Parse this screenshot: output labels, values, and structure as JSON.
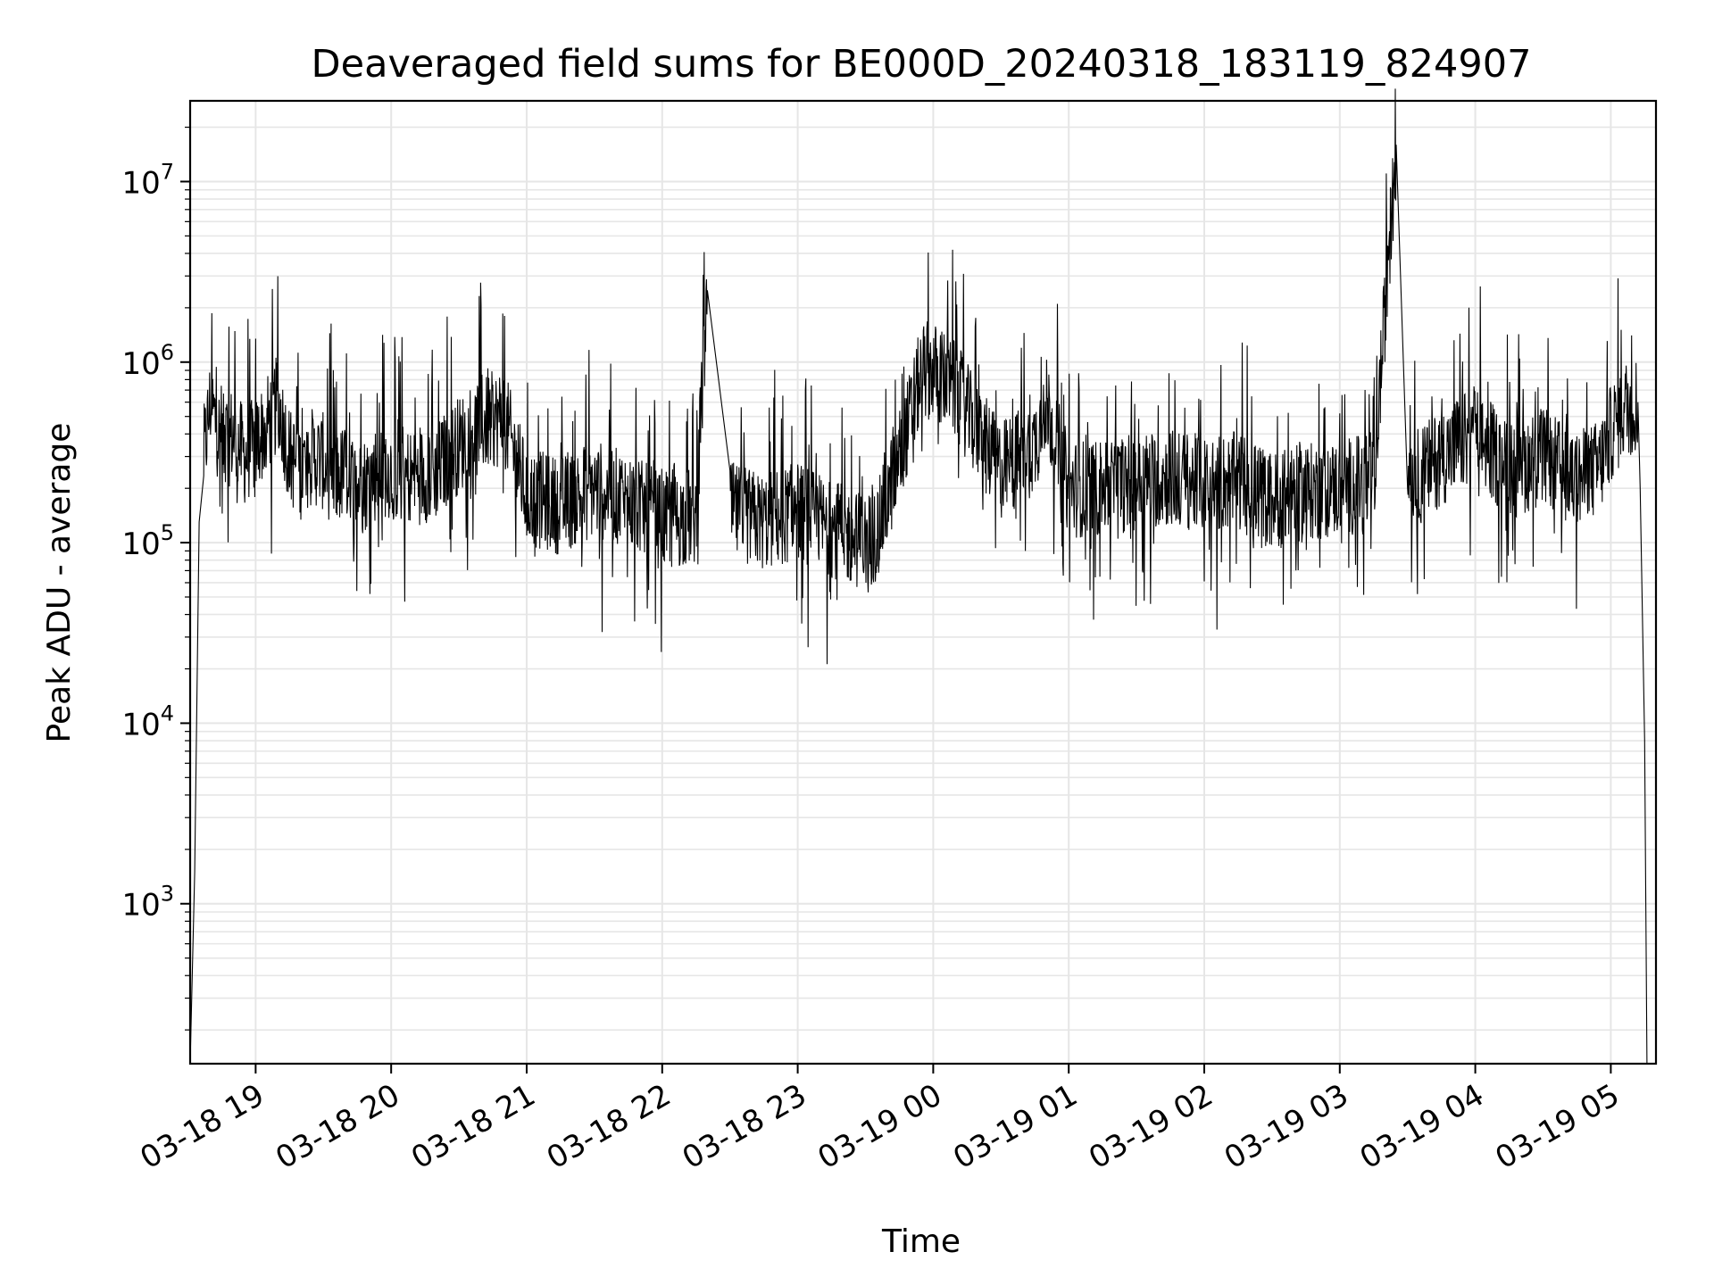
{
  "chart_data": {
    "type": "line",
    "title": "Deaveraged field sums for BE000D_20240318_183119_824907",
    "xlabel": "Time",
    "ylabel": "Peak ADU - average",
    "yscale": "log",
    "ylim": [
      130,
      28000000
    ],
    "xlim": [
      "03-18 18:31",
      "03-19 05:20"
    ],
    "grid": "on (major and minor)",
    "legend": "none",
    "x_ticks": [
      "03-18 19",
      "03-18 20",
      "03-18 21",
      "03-18 22",
      "03-18 23",
      "03-19 00",
      "03-19 01",
      "03-19 02",
      "03-19 03",
      "03-19 04",
      "03-19 05"
    ],
    "y_ticks": [
      {
        "value": 1000,
        "base": "10",
        "exp": "3"
      },
      {
        "value": 10000,
        "base": "10",
        "exp": "4"
      },
      {
        "value": 100000,
        "base": "10",
        "exp": "5"
      },
      {
        "value": 1000000,
        "base": "10",
        "exp": "6"
      },
      {
        "value": 10000000,
        "base": "10",
        "exp": "7"
      }
    ],
    "series": [
      {
        "color": "#000000",
        "x": [
          "03-18 18:31",
          "03-18 18:33",
          "03-18 18:35",
          "03-18 18:37",
          "03-18 18:40",
          "03-18 18:45",
          "03-18 18:50",
          "03-18 18:55",
          "03-18 19:00",
          "03-18 19:05",
          "03-18 19:10",
          "03-18 19:15",
          "03-18 19:20",
          "03-18 19:25",
          "03-18 19:30",
          "03-18 19:35",
          "03-18 19:40",
          "03-18 19:45",
          "03-18 19:50",
          "03-18 19:55",
          "03-18 20:00",
          "03-18 20:10",
          "03-18 20:20",
          "03-18 20:30",
          "03-18 20:40",
          "03-18 20:50",
          "03-18 21:00",
          "03-18 21:15",
          "03-18 21:30",
          "03-18 21:45",
          "03-18 22:00",
          "03-18 22:15",
          "03-18 22:20",
          "03-18 22:30",
          "03-18 22:45",
          "03-18 23:00",
          "03-18 23:15",
          "03-18 23:30",
          "03-18 23:35",
          "03-18 23:45",
          "03-18 23:50",
          "03-18 23:55",
          "03-19 00:00",
          "03-19 00:10",
          "03-19 00:20",
          "03-19 00:30",
          "03-19 00:45",
          "03-19 00:50",
          "03-19 01:00",
          "03-19 01:15",
          "03-19 01:30",
          "03-19 01:45",
          "03-19 02:00",
          "03-19 02:15",
          "03-19 02:30",
          "03-19 02:45",
          "03-19 03:00",
          "03-19 03:15",
          "03-19 03:25",
          "03-19 03:30",
          "03-19 03:35",
          "03-19 03:45",
          "03-19 04:00",
          "03-19 04:15",
          "03-19 04:30",
          "03-19 04:45",
          "03-19 04:55",
          "03-19 05:00",
          "03-19 05:05",
          "03-19 05:12",
          "03-19 05:13",
          "03-19 05:15",
          "03-19 05:16"
        ],
        "y": [
          130,
          1500,
          130000,
          300000,
          600000,
          350000,
          400000,
          300000,
          350000,
          450000,
          600000,
          300000,
          250000,
          300000,
          280000,
          220000,
          250000,
          200000,
          220000,
          260000,
          250000,
          230000,
          250000,
          350000,
          450000,
          500000,
          180000,
          160000,
          200000,
          170000,
          130000,
          140000,
          2500000,
          150000,
          130000,
          150000,
          120000,
          100000,
          110000,
          300000,
          500000,
          900000,
          900000,
          700000,
          400000,
          250000,
          350000,
          600000,
          200000,
          200000,
          220000,
          230000,
          210000,
          220000,
          170000,
          190000,
          200000,
          220000,
          16000000,
          250000,
          230000,
          300000,
          400000,
          250000,
          300000,
          220000,
          260000,
          400000,
          550000,
          600000,
          200000,
          8000,
          130
        ]
      }
    ]
  }
}
